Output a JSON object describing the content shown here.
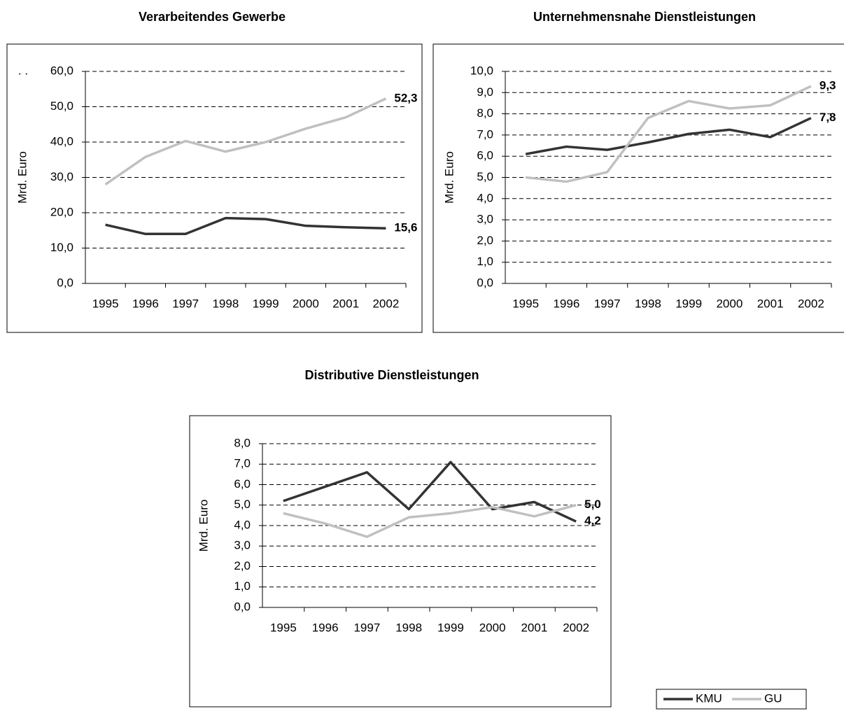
{
  "legend": {
    "items": [
      {
        "name": "KMU",
        "color": "#333333"
      },
      {
        "name": "GU",
        "color": "#c0c0c0"
      }
    ],
    "position": "lower right"
  },
  "chart_data": [
    {
      "type": "line",
      "title": "Verarbeitendes Gewerbe",
      "annotation": ". .",
      "y_label": "Mrd. Euro",
      "categories": [
        "1995",
        "1996",
        "1997",
        "1998",
        "1999",
        "2000",
        "2001",
        "2002"
      ],
      "series": [
        {
          "values": [
            16.6,
            14.0,
            14.0,
            18.5,
            18.2,
            16.3,
            15.9,
            15.6
          ],
          "value_labels": [
            null,
            null,
            null,
            null,
            null,
            null,
            null,
            "15,6"
          ]
        },
        {
          "values": [
            28.0,
            35.8,
            40.3,
            37.3,
            40.0,
            43.8,
            47.0,
            52.3
          ],
          "value_labels": [
            null,
            null,
            null,
            null,
            null,
            null,
            null,
            "52,3"
          ]
        }
      ],
      "ylim": [
        0,
        60
      ],
      "yticks": [
        {
          "value": 0,
          "label": "0,0"
        },
        {
          "value": 10,
          "label": "10,0"
        },
        {
          "value": 20,
          "label": "20,0"
        },
        {
          "value": 30,
          "label": "30,0"
        },
        {
          "value": 40,
          "label": "40,0"
        },
        {
          "value": 50,
          "label": "50,0"
        },
        {
          "value": 60,
          "label": "60,0"
        }
      ],
      "grid": true
    },
    {
      "type": "line",
      "title": "Unternehmensnahe Dienstleistungen",
      "y_label": "Mrd. Euro",
      "categories": [
        "1995",
        "1996",
        "1997",
        "1998",
        "1999",
        "2000",
        "2001",
        "2002"
      ],
      "series": [
        {
          "values": [
            6.1,
            6.45,
            6.3,
            6.65,
            7.05,
            7.25,
            6.9,
            7.8
          ],
          "value_labels": [
            null,
            null,
            null,
            null,
            null,
            null,
            null,
            "7,8"
          ]
        },
        {
          "values": [
            5.0,
            4.8,
            5.25,
            7.8,
            8.6,
            8.25,
            8.4,
            9.3
          ],
          "value_labels": [
            null,
            null,
            null,
            null,
            null,
            null,
            null,
            "9,3"
          ]
        }
      ],
      "ylim": [
        0,
        10
      ],
      "yticks": [
        {
          "value": 0,
          "label": "0,0"
        },
        {
          "value": 1,
          "label": "1,0"
        },
        {
          "value": 2,
          "label": "2,0"
        },
        {
          "value": 3,
          "label": "3,0"
        },
        {
          "value": 4,
          "label": "4,0"
        },
        {
          "value": 5,
          "label": "5,0"
        },
        {
          "value": 6,
          "label": "6,0"
        },
        {
          "value": 7,
          "label": "7,0"
        },
        {
          "value": 8,
          "label": "8,0"
        },
        {
          "value": 9,
          "label": "9,0"
        },
        {
          "value": 10,
          "label": "10,0"
        }
      ],
      "grid": true
    },
    {
      "type": "line",
      "title": "Distributive Dienstleistungen",
      "y_label": "Mrd. Euro",
      "categories": [
        "1995",
        "1996",
        "1997",
        "1998",
        "1999",
        "2000",
        "2001",
        "2002"
      ],
      "series": [
        {
          "values": [
            5.2,
            5.9,
            6.6,
            4.8,
            7.1,
            4.8,
            5.15,
            4.2
          ],
          "value_labels": [
            null,
            null,
            null,
            null,
            null,
            null,
            null,
            "4,2"
          ]
        },
        {
          "values": [
            4.6,
            4.1,
            3.45,
            4.4,
            4.6,
            4.9,
            4.45,
            5.0
          ],
          "value_labels": [
            null,
            null,
            null,
            null,
            null,
            null,
            null,
            "5,0"
          ]
        }
      ],
      "ylim": [
        0,
        8
      ],
      "yticks": [
        {
          "value": 0,
          "label": "0,0"
        },
        {
          "value": 1,
          "label": "1,0"
        },
        {
          "value": 2,
          "label": "2,0"
        },
        {
          "value": 3,
          "label": "3,0"
        },
        {
          "value": 4,
          "label": "4,0"
        },
        {
          "value": 5,
          "label": "5,0"
        },
        {
          "value": 6,
          "label": "6,0"
        },
        {
          "value": 7,
          "label": "7,0"
        },
        {
          "value": 8,
          "label": "8,0"
        }
      ],
      "grid": true
    }
  ]
}
